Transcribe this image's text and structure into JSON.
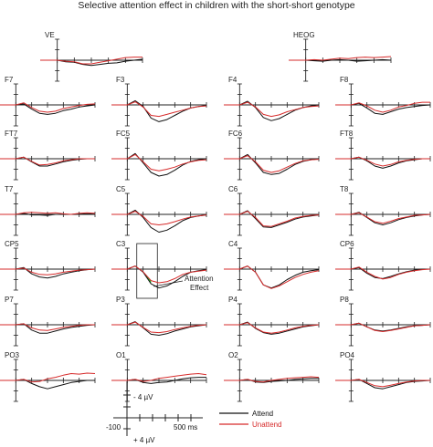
{
  "title": "Selective attention effect in children with the short-short genotype",
  "colors": {
    "attend": "#111111",
    "unattend": "#d62b2b",
    "effect": "#1fbf2e",
    "axis": "#222222"
  },
  "chart_data": {
    "type": "line",
    "x_unit": "ms",
    "xlim": [
      -100,
      500
    ],
    "ylim_uV": [
      -4,
      4
    ],
    "y_axis_inverted": true,
    "series": [
      {
        "key": "attend",
        "name": "Attend"
      },
      {
        "key": "unattend",
        "name": "Unattend"
      }
    ],
    "x": [
      -100,
      0,
      50,
      100,
      150,
      200,
      250,
      300,
      350,
      400,
      450,
      500
    ],
    "channels": [
      {
        "label": "VE",
        "attend": [
          0,
          0,
          0.3,
          0.4,
          0.8,
          1.0,
          0.8,
          0.6,
          0.5,
          0.2,
          0,
          -0.2
        ],
        "unattend": [
          0,
          0,
          0.2,
          0.3,
          0.7,
          0.7,
          0.4,
          0.1,
          -0.2,
          -0.5,
          -0.6,
          -0.6
        ]
      },
      {
        "label": "HEOG",
        "attend": [
          0,
          0,
          0.1,
          0.2,
          0,
          -0.1,
          0,
          0.2,
          0.1,
          0,
          -0.1,
          0
        ],
        "unattend": [
          0,
          0,
          -0.1,
          0,
          -0.2,
          -0.4,
          -0.3,
          -0.5,
          -0.6,
          -0.5,
          -0.6,
          -0.7
        ]
      },
      {
        "label": "F7",
        "attend": [
          0,
          0,
          -0.2,
          0.8,
          1.6,
          1.8,
          1.6,
          1.1,
          0.8,
          0.4,
          0.2,
          0
        ],
        "unattend": [
          0,
          0,
          -0.4,
          0.5,
          1.2,
          1.4,
          1.2,
          0.7,
          0.4,
          0.1,
          -0.1,
          -0.2
        ]
      },
      {
        "label": "F3",
        "attend": [
          0,
          0,
          -0.8,
          0.3,
          2.5,
          3.2,
          2.8,
          2.0,
          1.2,
          0.6,
          0.3,
          0.1
        ],
        "unattend": [
          0,
          0,
          -0.6,
          0.4,
          2.0,
          2.2,
          1.8,
          1.4,
          1.0,
          0.6,
          0.3,
          0.2
        ]
      },
      {
        "label": "F4",
        "attend": [
          0,
          0,
          -0.7,
          0.5,
          2.4,
          3.0,
          2.6,
          1.8,
          1.0,
          0.5,
          0.2,
          0
        ],
        "unattend": [
          0,
          0,
          -0.5,
          0.4,
          1.8,
          2.2,
          1.9,
          1.3,
          0.9,
          0.5,
          0.3,
          0.2
        ]
      },
      {
        "label": "F8",
        "attend": [
          0,
          0,
          -0.3,
          0.6,
          1.6,
          1.8,
          1.3,
          0.8,
          0.5,
          0.3,
          0.1,
          0
        ],
        "unattend": [
          0,
          0,
          -0.4,
          0.2,
          1.0,
          1.4,
          1.0,
          0.4,
          0.1,
          -0.3,
          -0.5,
          -0.5
        ]
      },
      {
        "label": "FT7",
        "attend": [
          0,
          0,
          -0.3,
          0.6,
          1.4,
          1.4,
          1.0,
          0.6,
          0.3,
          0.1,
          0,
          0
        ],
        "unattend": [
          0,
          0,
          -0.3,
          0.5,
          1.2,
          1.1,
          0.8,
          0.4,
          0.2,
          0,
          0,
          0
        ]
      },
      {
        "label": "FC5",
        "attend": [
          0,
          0,
          -1.0,
          0.8,
          2.6,
          3.3,
          3.0,
          2.2,
          1.2,
          0.5,
          0.2,
          0
        ],
        "unattend": [
          0,
          0,
          -0.8,
          0.6,
          2.0,
          2.3,
          2.0,
          1.6,
          1.0,
          0.6,
          0.3,
          0.2
        ]
      },
      {
        "label": "FC6",
        "attend": [
          0,
          0,
          -0.8,
          0.8,
          2.6,
          3.0,
          2.8,
          2.0,
          1.1,
          0.5,
          0.2,
          0
        ],
        "unattend": [
          0,
          0,
          -0.6,
          0.6,
          2.2,
          2.6,
          2.3,
          1.6,
          0.9,
          0.4,
          0.2,
          0.1
        ]
      },
      {
        "label": "FT8",
        "attend": [
          0,
          0,
          -0.3,
          0.4,
          1.4,
          1.8,
          1.4,
          0.8,
          0.4,
          0.2,
          0,
          0
        ],
        "unattend": [
          0,
          0,
          -0.3,
          0.3,
          1.0,
          1.4,
          1.1,
          0.6,
          0.3,
          0.1,
          0,
          0
        ]
      },
      {
        "label": "T7",
        "attend": [
          0,
          0,
          -0.2,
          0.1,
          0.1,
          0.2,
          0,
          0,
          0,
          -0.1,
          -0.1,
          -0.2
        ],
        "unattend": [
          0,
          0,
          -0.3,
          -0.4,
          -0.3,
          -0.2,
          -0.3,
          -0.1,
          0,
          -0.2,
          -0.3,
          -0.2
        ]
      },
      {
        "label": "C5",
        "attend": [
          0,
          0,
          -0.8,
          0.6,
          2.5,
          3.4,
          3.0,
          2.2,
          1.2,
          0.6,
          0.3,
          0.1
        ],
        "unattend": [
          0,
          0,
          -0.6,
          0.4,
          1.8,
          2.0,
          1.8,
          1.4,
          0.9,
          0.5,
          0.3,
          0.1
        ]
      },
      {
        "label": "C6",
        "attend": [
          0,
          0,
          -0.7,
          0.8,
          2.4,
          2.5,
          2.0,
          1.5,
          0.9,
          0.5,
          0.3,
          0.1
        ],
        "unattend": [
          0,
          0,
          -0.6,
          0.6,
          2.2,
          2.3,
          1.8,
          1.3,
          0.7,
          0.4,
          0.2,
          0.1
        ]
      },
      {
        "label": "T8",
        "attend": [
          0,
          0,
          -0.4,
          0.6,
          1.6,
          2.0,
          1.6,
          1.0,
          0.6,
          0.3,
          0.1,
          0
        ],
        "unattend": [
          0,
          0,
          -0.3,
          0.5,
          1.4,
          1.7,
          1.3,
          0.8,
          0.5,
          0.2,
          0.1,
          0
        ]
      },
      {
        "label": "CP5",
        "attend": [
          0,
          0,
          -0.3,
          0.9,
          1.5,
          1.7,
          1.4,
          0.9,
          0.6,
          0.3,
          0.1,
          0
        ],
        "unattend": [
          0,
          0,
          -0.2,
          0.6,
          1.0,
          1.1,
          0.9,
          0.6,
          0.4,
          0.2,
          0.1,
          0
        ]
      },
      {
        "label": "C3",
        "attend": [
          0,
          0,
          -0.6,
          0.6,
          2.8,
          3.6,
          3.2,
          2.4,
          1.4,
          0.6,
          0.3,
          0.1
        ],
        "unattend": [
          0,
          0,
          -0.6,
          0.5,
          2.2,
          2.6,
          2.4,
          1.8,
          1.0,
          0.6,
          0.4,
          0.2
        ]
      },
      {
        "label": "C4",
        "attend": [
          0,
          0,
          -0.6,
          0.6,
          3.0,
          3.6,
          3.0,
          2.0,
          1.2,
          0.6,
          0.3,
          0.1
        ],
        "unattend": [
          0,
          0,
          -0.6,
          0.6,
          3.0,
          3.7,
          3.2,
          2.4,
          1.6,
          1.0,
          0.6,
          0.3
        ]
      },
      {
        "label": "CP6",
        "attend": [
          0,
          0,
          -0.3,
          0.8,
          1.6,
          1.8,
          1.4,
          0.9,
          0.5,
          0.2,
          0,
          0
        ],
        "unattend": [
          0,
          0,
          -0.4,
          0.6,
          1.4,
          1.9,
          1.6,
          1.0,
          0.6,
          0.3,
          0.1,
          0
        ]
      },
      {
        "label": "P7",
        "attend": [
          0,
          0,
          -0.2,
          1.0,
          1.6,
          1.6,
          1.2,
          0.8,
          0.5,
          0.3,
          0.1,
          0
        ],
        "unattend": [
          0,
          0,
          -0.2,
          0.6,
          1.0,
          1.1,
          0.8,
          0.5,
          0.3,
          0.1,
          0,
          0
        ]
      },
      {
        "label": "P3",
        "attend": [
          0,
          0,
          -0.6,
          0.6,
          1.8,
          2.0,
          1.7,
          1.2,
          0.8,
          0.4,
          0.2,
          0
        ],
        "unattend": [
          0,
          0,
          -0.5,
          0.5,
          1.4,
          1.5,
          1.3,
          0.9,
          0.6,
          0.3,
          0.1,
          0
        ]
      },
      {
        "label": "P4",
        "attend": [
          0,
          0,
          -0.5,
          0.7,
          1.5,
          1.8,
          1.6,
          1.2,
          0.8,
          0.4,
          0.2,
          0
        ],
        "unattend": [
          0,
          0,
          -0.4,
          0.6,
          1.4,
          1.6,
          1.4,
          1.0,
          0.6,
          0.3,
          0.1,
          0
        ]
      },
      {
        "label": "P8",
        "attend": [
          0,
          0,
          -0.3,
          0.4,
          1.0,
          1.2,
          1.0,
          0.7,
          0.4,
          0.2,
          0.1,
          0
        ],
        "unattend": [
          0,
          0,
          -0.3,
          0.4,
          1.1,
          1.3,
          1.1,
          0.8,
          0.5,
          0.2,
          0.1,
          0
        ]
      },
      {
        "label": "PO3",
        "attend": [
          0,
          0,
          -0.2,
          0.6,
          1.2,
          1.6,
          1.2,
          0.8,
          0.4,
          0.2,
          0,
          0
        ],
        "unattend": [
          0,
          0,
          -0.2,
          0.3,
          0.2,
          -0.3,
          -0.6,
          -1.0,
          -1.3,
          -1.2,
          -1.4,
          -1.3
        ]
      },
      {
        "label": "O1",
        "attend": [
          0,
          0,
          -0.2,
          0.4,
          0.6,
          0.4,
          0.3,
          0,
          -0.3,
          -0.5,
          -0.6,
          -0.6
        ],
        "unattend": [
          0,
          0,
          -0.2,
          0.2,
          0,
          -0.4,
          -0.6,
          -0.8,
          -1.0,
          -1.2,
          -1.3,
          -1.1
        ]
      },
      {
        "label": "O2",
        "attend": [
          0,
          0,
          -0.2,
          0.3,
          0.4,
          0.2,
          0.1,
          0,
          -0.2,
          -0.3,
          -0.4,
          -0.4
        ],
        "unattend": [
          0,
          0,
          -0.2,
          0.2,
          0.3,
          0,
          -0.2,
          -0.4,
          -0.5,
          -0.6,
          -0.7,
          -0.6
        ]
      },
      {
        "label": "PO4",
        "attend": [
          0,
          0,
          -0.2,
          0.6,
          1.4,
          1.6,
          1.2,
          0.8,
          0.4,
          0.2,
          0.1,
          0
        ],
        "unattend": [
          0,
          0,
          -0.2,
          0.4,
          1.0,
          1.2,
          0.9,
          0.6,
          0.3,
          0.1,
          0,
          0
        ]
      }
    ],
    "annotation": {
      "channel": "C3",
      "text": [
        "Attention",
        "Effect"
      ],
      "window_ms": [
        100,
        150
      ]
    },
    "scale_bar": {
      "neg_label": "- 4 µV",
      "pos_label": "+ 4 µV",
      "x_min_label": "-100",
      "x_max_label": "500 ms"
    },
    "legend": {
      "position": "bottom-right",
      "items": [
        "Attend",
        "Unattend"
      ]
    }
  }
}
